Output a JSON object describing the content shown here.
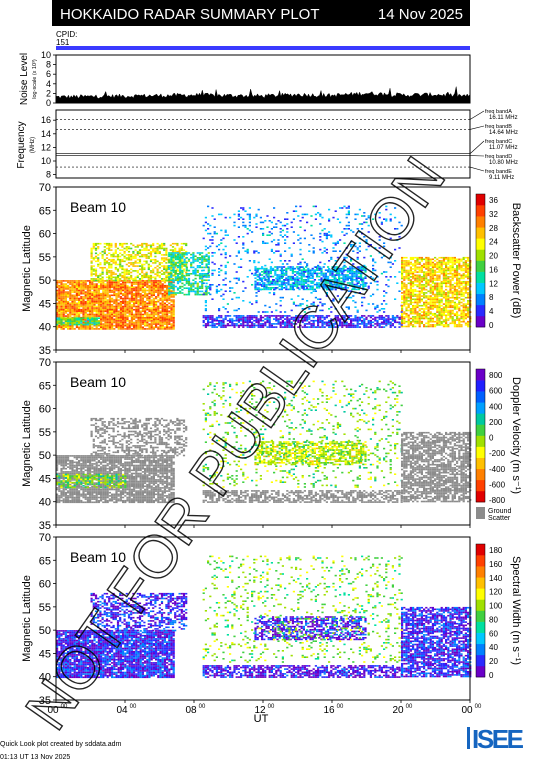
{
  "header": {
    "title": "HOKKAIDO RADAR SUMMARY PLOT",
    "date": "14 Nov 2025",
    "cpid_label": "CPID:",
    "cpid_value": "151",
    "cpid_bar_color": "#3a3aff"
  },
  "watermark": "NOT FOR PUBLICATION",
  "noise_panel": {
    "ylabel": "Noise Level",
    "ylabel_sub": "log-scale (x 10³)",
    "yticks": [
      "0",
      "2",
      "4",
      "6",
      "8",
      "10"
    ]
  },
  "frequency_panel": {
    "ylabel": "Frequency",
    "unit": "(MHz)",
    "yticks": [
      "8",
      "10",
      "12",
      "14",
      "16"
    ],
    "bands": [
      {
        "name": "freq bandA",
        "value": "16.11 MHz",
        "mhz": 16.11
      },
      {
        "name": "freq bandB",
        "value": "14.64 MHz",
        "mhz": 14.64
      },
      {
        "name": "freq bandC",
        "value": "11.07 MHz",
        "mhz": 11.07
      },
      {
        "name": "freq bandD",
        "value": "10.80 MHz",
        "mhz": 10.8
      },
      {
        "name": "freq bandE",
        "value": "9.11 MHz",
        "mhz": 9.11
      }
    ]
  },
  "beam_label": "Beam 10",
  "latitude_label": "Magnetic Latitude",
  "latitude_ticks": [
    "35",
    "40",
    "45",
    "50",
    "55",
    "60",
    "65",
    "70"
  ],
  "x_ticks": [
    {
      "base": "00",
      "sup": "00"
    },
    {
      "base": "04",
      "sup": "00"
    },
    {
      "base": "08",
      "sup": "00"
    },
    {
      "base": "12",
      "sup": "00"
    },
    {
      "base": "16",
      "sup": "00"
    },
    {
      "base": "20",
      "sup": "00"
    },
    {
      "base": "00",
      "sup": "00"
    }
  ],
  "xlabel": "UT",
  "colorbars": {
    "power": {
      "label": "Backscatter Power (dB)",
      "ticks": [
        "0",
        "4",
        "8",
        "12",
        "16",
        "20",
        "24",
        "28",
        "32",
        "36"
      ]
    },
    "velocity": {
      "label": "Doppler Velocity (m s⁻¹)",
      "ticks": [
        "-800",
        "-600",
        "-400",
        "-200",
        "0",
        "200",
        "400",
        "600",
        "800"
      ],
      "ground_label": "Ground",
      "scatter_label": "Scatter"
    },
    "width": {
      "label": "Spectral Width (m s⁻¹)",
      "ticks": [
        "0",
        "20",
        "40",
        "60",
        "80",
        "100",
        "120",
        "140",
        "160",
        "180"
      ]
    }
  },
  "footer": {
    "credit": "Quick Look plot created by sddata.adm",
    "timestamp": "01:13 UT 13 Nov 2025",
    "logo_text": "ISEE",
    "logo_colors": [
      "#1565c0",
      "#2e7d32",
      "#43a047",
      "#1e88e5"
    ]
  },
  "chart_data": [
    {
      "type": "area",
      "title": "Noise Level",
      "xlabel": "",
      "ylabel": "Noise Level",
      "x_range_ut_hours": [
        0,
        24
      ],
      "ylim": [
        0,
        10
      ],
      "x": [
        0,
        2,
        4,
        6,
        8,
        10,
        12,
        14,
        16,
        18,
        20,
        22,
        24
      ],
      "values": [
        0.8,
        0.9,
        1.0,
        1.1,
        1.2,
        1.1,
        1.0,
        1.3,
        1.1,
        1.6,
        1.2,
        1.3,
        1.0
      ]
    },
    {
      "type": "line",
      "title": "Frequency",
      "ylabel": "Frequency (MHz)",
      "ylim": [
        7.5,
        17.5
      ],
      "series": [
        {
          "name": "freq bandA",
          "values": [
            16.11
          ]
        },
        {
          "name": "freq bandB",
          "values": [
            14.64
          ]
        },
        {
          "name": "freq bandC",
          "values": [
            11.07
          ]
        },
        {
          "name": "freq bandD",
          "values": [
            10.8
          ]
        },
        {
          "name": "freq bandE",
          "values": [
            9.11
          ]
        }
      ]
    },
    {
      "type": "heatmap",
      "title": "Beam 10",
      "xlabel": "UT",
      "ylabel": "Magnetic Latitude",
      "x_range_ut_hours": [
        0,
        24
      ],
      "ylim": [
        35,
        70
      ],
      "colorbar": "Backscatter Power (dB)",
      "colorbar_range": [
        0,
        36
      ],
      "palette": [
        "#6a00c8",
        "#2a2aff",
        "#0080ff",
        "#00c8ff",
        "#00e0a0",
        "#40d040",
        "#a0e000",
        "#ffff00",
        "#ffc000",
        "#ff8000",
        "#ff4000",
        "#e00000"
      ],
      "regions": [
        {
          "t0": 0.0,
          "t1": 6.8,
          "lat0": 39.5,
          "lat1": 50.0,
          "value": 28,
          "density": 0.9
        },
        {
          "t0": 2.0,
          "t1": 7.5,
          "lat0": 50.0,
          "lat1": 58.0,
          "value": 22,
          "density": 0.55
        },
        {
          "t0": 6.5,
          "t1": 8.8,
          "lat0": 47.0,
          "lat1": 56.0,
          "value": 14,
          "density": 0.6
        },
        {
          "t0": 8.5,
          "t1": 20.0,
          "lat0": 40.0,
          "lat1": 42.5,
          "value": 4,
          "density": 0.7
        },
        {
          "t0": 11.5,
          "t1": 18.0,
          "lat0": 48.0,
          "lat1": 53.0,
          "value": 10,
          "density": 0.7
        },
        {
          "t0": 8.5,
          "t1": 20.0,
          "lat0": 43.0,
          "lat1": 66.0,
          "value": 8,
          "density": 0.12
        },
        {
          "t0": 20.0,
          "t1": 24.0,
          "lat0": 40.0,
          "lat1": 55.0,
          "value": 24,
          "density": 0.75
        },
        {
          "t0": 0.0,
          "t1": 2.5,
          "lat0": 40.5,
          "lat1": 42.0,
          "value": 16,
          "density": 0.9
        }
      ]
    },
    {
      "type": "heatmap",
      "title": "Beam 10",
      "xlabel": "UT",
      "ylabel": "Magnetic Latitude",
      "x_range_ut_hours": [
        0,
        24
      ],
      "ylim": [
        35,
        70
      ],
      "colorbar": "Doppler Velocity (m s⁻¹)",
      "colorbar_range": [
        -800,
        800
      ],
      "palette": [
        "#e00000",
        "#ff4000",
        "#ff8000",
        "#ffc000",
        "#ffff00",
        "#a0e000",
        "#40d040",
        "#00c8a0",
        "#00a0ff",
        "#0060ff",
        "#2020ff",
        "#6a00c8"
      ],
      "regions": [
        {
          "t0": 0.0,
          "t1": 6.8,
          "lat0": 40.0,
          "lat1": 50.0,
          "value": "ground",
          "density": 0.85
        },
        {
          "t0": 2.0,
          "t1": 7.5,
          "lat0": 50.0,
          "lat1": 58.0,
          "value": "ground",
          "density": 0.45
        },
        {
          "t0": 0.0,
          "t1": 4.0,
          "lat0": 43.0,
          "lat1": 46.0,
          "value": 0,
          "density": 0.55
        },
        {
          "t0": 11.5,
          "t1": 18.0,
          "lat0": 48.0,
          "lat1": 53.0,
          "value": -100,
          "density": 0.65
        },
        {
          "t0": 8.5,
          "t1": 20.0,
          "lat0": 40.0,
          "lat1": 42.5,
          "value": "ground",
          "density": 0.65
        },
        {
          "t0": 8.5,
          "t1": 20.0,
          "lat0": 43.0,
          "lat1": 66.0,
          "value": 0,
          "density": 0.12
        },
        {
          "t0": 20.0,
          "t1": 24.0,
          "lat0": 40.0,
          "lat1": 55.0,
          "value": "ground",
          "density": 0.7
        }
      ]
    },
    {
      "type": "heatmap",
      "title": "Beam 10",
      "xlabel": "UT",
      "ylabel": "Magnetic Latitude",
      "x_range_ut_hours": [
        0,
        24
      ],
      "ylim": [
        35,
        70
      ],
      "colorbar": "Spectral Width (m s⁻¹)",
      "colorbar_range": [
        0,
        180
      ],
      "palette": [
        "#6a00c8",
        "#2a2aff",
        "#0080ff",
        "#00c8ff",
        "#00e0a0",
        "#40d040",
        "#a0e000",
        "#ffff00",
        "#ffc000",
        "#ff8000",
        "#ff4000",
        "#e00000"
      ],
      "regions": [
        {
          "t0": 0.0,
          "t1": 6.8,
          "lat0": 40.0,
          "lat1": 50.0,
          "value": 20,
          "density": 0.9
        },
        {
          "t0": 2.0,
          "t1": 7.5,
          "lat0": 50.0,
          "lat1": 58.0,
          "value": 20,
          "density": 0.5
        },
        {
          "t0": 11.5,
          "t1": 18.0,
          "lat0": 48.0,
          "lat1": 53.0,
          "value": 15,
          "density": 0.6
        },
        {
          "t0": 8.5,
          "t1": 20.0,
          "lat0": 40.0,
          "lat1": 42.5,
          "value": 15,
          "density": 0.65
        },
        {
          "t0": 8.5,
          "t1": 20.0,
          "lat0": 43.0,
          "lat1": 66.0,
          "value": 90,
          "density": 0.12
        },
        {
          "t0": 20.0,
          "t1": 24.0,
          "lat0": 40.0,
          "lat1": 55.0,
          "value": 20,
          "density": 0.75
        }
      ]
    }
  ]
}
